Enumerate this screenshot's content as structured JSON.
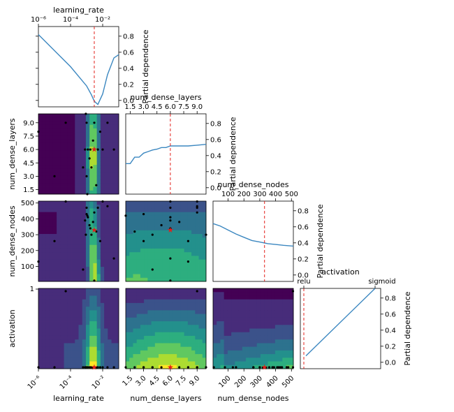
{
  "chart_data": {
    "type": "pairplot",
    "description_free": true,
    "dimensions": [
      {
        "name": "learning_rate",
        "scale": "log",
        "range": [
          1e-06,
          0.1
        ],
        "ticks": [
          {
            "v": 1e-06,
            "label": "10⁻⁶"
          },
          {
            "v": 0.0001,
            "label": "10⁻⁴"
          },
          {
            "v": 0.01,
            "label": "10⁻²"
          }
        ],
        "best": 0.003
      },
      {
        "name": "num_dense_layers",
        "scale": "linear",
        "range": [
          1,
          10
        ],
        "ticks": [
          {
            "v": 1.5,
            "label": "1.5"
          },
          {
            "v": 3.0,
            "label": "3.0"
          },
          {
            "v": 4.5,
            "label": "4.5"
          },
          {
            "v": 6.0,
            "label": "6.0"
          },
          {
            "v": 7.5,
            "label": "7.5"
          },
          {
            "v": 9.0,
            "label": "9.0"
          }
        ],
        "best": 6
      },
      {
        "name": "num_dense_nodes",
        "scale": "linear",
        "range": [
          5,
          512
        ],
        "ticks": [
          {
            "v": 100,
            "label": "100"
          },
          {
            "v": 200,
            "label": "200"
          },
          {
            "v": 300,
            "label": "300"
          },
          {
            "v": 400,
            "label": "400"
          },
          {
            "v": 500,
            "label": "500"
          }
        ],
        "best": 330
      },
      {
        "name": "activation",
        "scale": "categorical",
        "range": [
          0,
          1
        ],
        "ticks": [
          {
            "v": 0,
            "label": "relu"
          },
          {
            "v": 1,
            "label": "sigmoid"
          }
        ],
        "best": 0
      }
    ],
    "partial_dependence_label": "Partial dependence",
    "pd_ticks": [
      {
        "v": 0.0,
        "label": "0.0"
      },
      {
        "v": 0.2,
        "label": "0.2"
      },
      {
        "v": 0.4,
        "label": "0.4"
      },
      {
        "v": 0.6,
        "label": "0.6"
      },
      {
        "v": 0.8,
        "label": "0.8"
      }
    ],
    "pd_range": [
      -0.08,
      0.92
    ],
    "partial_dependence": [
      {
        "dimension": "learning_rate",
        "x": [
          1e-06,
          1e-05,
          0.0001,
          0.001,
          0.002,
          0.003,
          0.005,
          0.01,
          0.02,
          0.05,
          0.1
        ],
        "y": [
          0.82,
          0.62,
          0.42,
          0.18,
          0.07,
          -0.01,
          -0.05,
          0.08,
          0.32,
          0.53,
          0.57
        ]
      },
      {
        "dimension": "num_dense_layers",
        "x": [
          1,
          1.5,
          2,
          2.5,
          3,
          3.5,
          4,
          4.5,
          5,
          5.5,
          6,
          7,
          8,
          9,
          10
        ],
        "y": [
          0.3,
          0.3,
          0.38,
          0.38,
          0.43,
          0.45,
          0.47,
          0.48,
          0.5,
          0.5,
          0.52,
          0.52,
          0.52,
          0.53,
          0.54
        ]
      },
      {
        "dimension": "num_dense_nodes",
        "x": [
          5,
          50,
          100,
          150,
          200,
          250,
          300,
          350,
          400,
          450,
          512
        ],
        "y": [
          0.64,
          0.61,
          0.56,
          0.51,
          0.47,
          0.43,
          0.41,
          0.39,
          0.38,
          0.37,
          0.36
        ]
      },
      {
        "dimension": "activation",
        "x": [
          0,
          1
        ],
        "y": [
          0.08,
          0.92
        ]
      }
    ],
    "samples": [
      {
        "lr": 0.001,
        "layers": 9,
        "nodes": 470,
        "act": 0
      },
      {
        "lr": 0.001,
        "layers": 3,
        "nodes": 430,
        "act": 0
      },
      {
        "lr": 0.0012,
        "layers": 6,
        "nodes": 410,
        "act": 0
      },
      {
        "lr": 0.0015,
        "layers": 5,
        "nodes": 360,
        "act": 0
      },
      {
        "lr": 0.0017,
        "layers": 6,
        "nodes": 340,
        "act": 0
      },
      {
        "lr": 0.002,
        "layers": 4,
        "nodes": 300,
        "act": 0
      },
      {
        "lr": 0.0025,
        "layers": 7,
        "nodes": 380,
        "act": 0
      },
      {
        "lr": 0.003,
        "layers": 6,
        "nodes": 330,
        "act": 0
      },
      {
        "lr": 0.003,
        "layers": 9,
        "nodes": 440,
        "act": 0
      },
      {
        "lr": 0.004,
        "layers": 2,
        "nodes": 320,
        "act": 0
      },
      {
        "lr": 0.005,
        "layers": 6,
        "nodes": 470,
        "act": 0
      },
      {
        "lr": 0.007,
        "layers": 8,
        "nodes": 260,
        "act": 0
      },
      {
        "lr": 0.01,
        "layers": 6,
        "nodes": 510,
        "act": 0
      },
      {
        "lr": 0.02,
        "layers": 9,
        "nodes": 480,
        "act": 0
      },
      {
        "lr": 0.0008,
        "layers": 6,
        "nodes": 390,
        "act": 0
      },
      {
        "lr": 0.0011,
        "layers": 1,
        "nodes": 420,
        "act": 0
      },
      {
        "lr": 0.0009,
        "layers": 10,
        "nodes": 300,
        "act": 0
      },
      {
        "lr": 1e-06,
        "layers": 8,
        "nodes": 130,
        "act": 0
      },
      {
        "lr": 1e-05,
        "layers": 3,
        "nodes": 260,
        "act": 0
      },
      {
        "lr": 5e-05,
        "layers": 9,
        "nodes": 510,
        "act": 1
      },
      {
        "lr": 0.05,
        "layers": 6,
        "nodes": 150,
        "act": 0
      },
      {
        "lr": 0.003,
        "layers": 6,
        "nodes": 10,
        "act": 0
      },
      {
        "lr": 0.0006,
        "layers": 4,
        "nodes": 80,
        "act": 0
      }
    ]
  }
}
